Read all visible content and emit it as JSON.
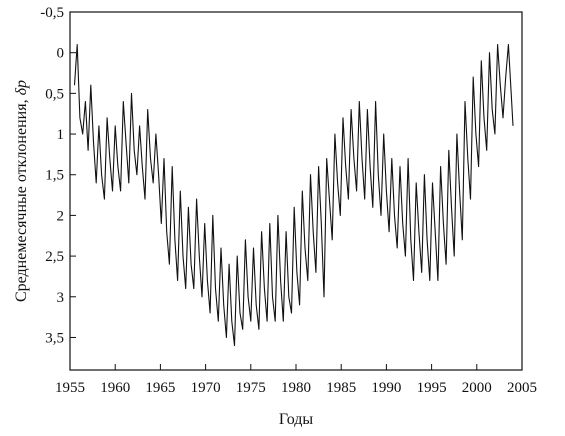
{
  "chart_data": {
    "type": "line",
    "xlabel": "Годы",
    "ylabel": "Среднемесячные отклонения,",
    "ylabel_symbol": "δp",
    "xlim": [
      1955,
      2005
    ],
    "ylim": [
      -0.5,
      3.9
    ],
    "y_inverted": true,
    "grid": false,
    "legend": "none",
    "line_color": "#111111",
    "x_ticks": [
      1955,
      1960,
      1965,
      1970,
      1975,
      1980,
      1985,
      1990,
      1995,
      2000,
      2005
    ],
    "x_tick_labels": [
      "1955",
      "1960",
      "1965",
      "1970",
      "1975",
      "1980",
      "1985",
      "1990",
      "1995",
      "2000",
      "2005"
    ],
    "y_ticks": [
      -0.5,
      0,
      0.5,
      1,
      1.5,
      2,
      2.5,
      3,
      3.5
    ],
    "y_tick_labels": [
      "-0,5",
      "0",
      "0,5",
      "1",
      "1,5",
      "2",
      "2,5",
      "3",
      "3,5"
    ],
    "series": [
      {
        "x": [
          1955.5,
          1955.8,
          1956.1,
          1956.4,
          1956.7,
          1957.0,
          1957.3,
          1957.6,
          1957.9,
          1958.2,
          1958.5,
          1958.8,
          1959.1,
          1959.4,
          1959.7,
          1960.0,
          1960.3,
          1960.6,
          1960.9,
          1961.2,
          1961.5,
          1961.8,
          1962.1,
          1962.4,
          1962.7,
          1963.0,
          1963.3,
          1963.6,
          1963.9,
          1964.2,
          1964.5,
          1964.8,
          1965.1,
          1965.4,
          1965.7,
          1966.0,
          1966.3,
          1966.6,
          1966.9,
          1967.2,
          1967.5,
          1967.8,
          1968.1,
          1968.4,
          1968.7,
          1969.0,
          1969.3,
          1969.6,
          1969.9,
          1970.2,
          1970.5,
          1970.8,
          1971.1,
          1971.4,
          1971.7,
          1972.0,
          1972.3,
          1972.6,
          1972.9,
          1973.2,
          1973.5,
          1973.8,
          1974.1,
          1974.4,
          1974.7,
          1975.0,
          1975.3,
          1975.6,
          1975.9,
          1976.2,
          1976.5,
          1976.8,
          1977.1,
          1977.4,
          1977.7,
          1978.0,
          1978.3,
          1978.6,
          1978.9,
          1979.2,
          1979.5,
          1979.8,
          1980.1,
          1980.4,
          1980.7,
          1981.0,
          1981.3,
          1981.6,
          1981.9,
          1982.2,
          1982.5,
          1982.8,
          1983.1,
          1983.4,
          1983.7,
          1984.0,
          1984.3,
          1984.6,
          1984.9,
          1985.2,
          1985.5,
          1985.8,
          1986.1,
          1986.4,
          1986.7,
          1987.0,
          1987.3,
          1987.6,
          1987.9,
          1988.2,
          1988.5,
          1988.8,
          1989.1,
          1989.4,
          1989.7,
          1990.0,
          1990.3,
          1990.6,
          1990.9,
          1991.2,
          1991.5,
          1991.8,
          1992.1,
          1992.4,
          1992.7,
          1993.0,
          1993.3,
          1993.6,
          1993.9,
          1994.2,
          1994.5,
          1994.8,
          1995.1,
          1995.4,
          1995.7,
          1996.0,
          1996.3,
          1996.6,
          1996.9,
          1997.2,
          1997.5,
          1997.8,
          1998.1,
          1998.4,
          1998.7,
          1999.0,
          1999.3,
          1999.6,
          1999.9,
          2000.2,
          2000.5,
          2000.8,
          2001.1,
          2001.4,
          2001.7,
          2002.0,
          2002.3,
          2002.6,
          2002.9,
          2003.2,
          2003.5,
          2003.8,
          2004.0
        ],
        "values": [
          0.4,
          -0.1,
          0.8,
          1.0,
          0.6,
          1.2,
          0.4,
          1.1,
          1.6,
          0.9,
          1.5,
          1.8,
          0.8,
          1.3,
          1.7,
          0.9,
          1.4,
          1.7,
          0.6,
          1.1,
          1.6,
          0.5,
          1.2,
          1.5,
          0.9,
          1.4,
          1.8,
          0.7,
          1.3,
          1.6,
          1.0,
          1.5,
          2.1,
          1.3,
          2.2,
          2.6,
          1.4,
          2.3,
          2.8,
          1.7,
          2.5,
          2.9,
          1.9,
          2.6,
          2.9,
          1.8,
          2.5,
          3.0,
          2.1,
          2.8,
          3.2,
          2.0,
          2.9,
          3.3,
          2.4,
          3.1,
          3.5,
          2.6,
          3.3,
          3.6,
          2.5,
          3.2,
          3.4,
          2.3,
          3.0,
          3.3,
          2.4,
          3.1,
          3.4,
          2.2,
          2.9,
          3.3,
          2.1,
          3.0,
          3.3,
          2.0,
          2.8,
          3.3,
          2.2,
          3.0,
          3.2,
          1.9,
          2.7,
          3.1,
          1.7,
          2.4,
          2.8,
          1.5,
          2.2,
          2.7,
          1.4,
          2.1,
          3.0,
          1.3,
          1.8,
          2.3,
          1.0,
          1.6,
          2.0,
          0.8,
          1.4,
          1.8,
          0.7,
          1.3,
          1.7,
          0.6,
          1.3,
          1.8,
          0.7,
          1.4,
          1.9,
          0.6,
          1.5,
          2.0,
          1.0,
          1.7,
          2.2,
          1.3,
          2.0,
          2.4,
          1.4,
          2.1,
          2.5,
          1.3,
          2.3,
          2.8,
          1.6,
          2.2,
          2.7,
          1.5,
          2.3,
          2.8,
          1.6,
          2.2,
          2.8,
          1.4,
          2.1,
          2.6,
          1.2,
          1.9,
          2.5,
          1.0,
          1.7,
          2.3,
          0.6,
          1.3,
          1.8,
          0.3,
          1.0,
          1.4,
          0.1,
          0.8,
          1.2,
          0.0,
          0.7,
          1.0,
          -0.1,
          0.4,
          0.8,
          0.3,
          -0.1,
          0.5,
          0.9
        ]
      }
    ]
  }
}
